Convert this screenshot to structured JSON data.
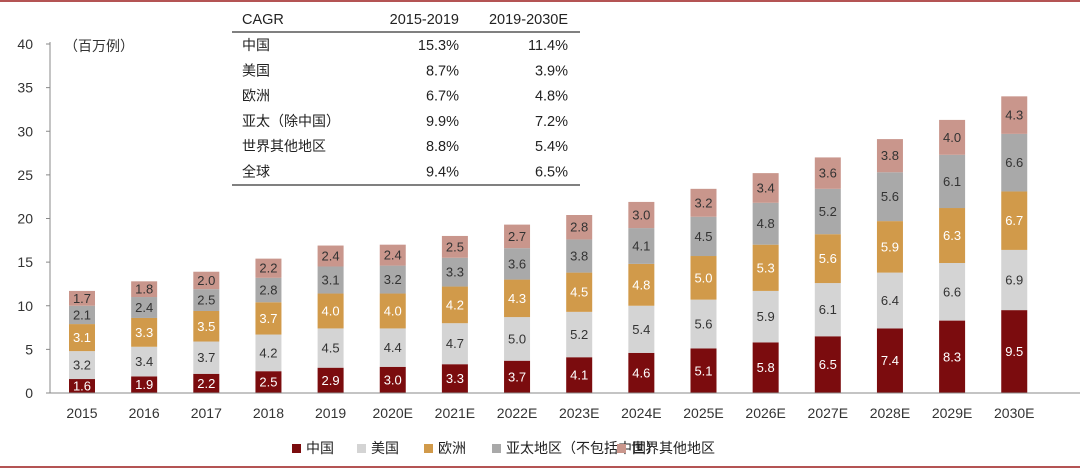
{
  "unit_note": "（百万例）",
  "chart_data": {
    "type": "bar",
    "stacked": true,
    "categories": [
      "2015",
      "2016",
      "2017",
      "2018",
      "2019",
      "2020E",
      "2021E",
      "2022E",
      "2023E",
      "2024E",
      "2025E",
      "2026E",
      "2027E",
      "2028E",
      "2029E",
      "2030E"
    ],
    "ylim": [
      0,
      40
    ],
    "yticks": [
      0,
      5,
      10,
      15,
      20,
      25,
      30,
      35,
      40
    ],
    "series": [
      {
        "name": "中国",
        "color": "#7b0c0e",
        "label_color": "#ffffff",
        "values": [
          1.6,
          1.9,
          2.2,
          2.5,
          2.9,
          3.0,
          3.3,
          3.7,
          4.1,
          4.6,
          5.1,
          5.8,
          6.5,
          7.4,
          8.3,
          9.5
        ]
      },
      {
        "name": "美国",
        "color": "#d4d4d4",
        "label_color": "#333333",
        "values": [
          3.2,
          3.4,
          3.7,
          4.2,
          4.5,
          4.4,
          4.7,
          5.0,
          5.2,
          5.4,
          5.6,
          5.9,
          6.1,
          6.4,
          6.6,
          6.9
        ]
      },
      {
        "name": "欧洲",
        "color": "#d19a4a",
        "label_color": "#ffffff",
        "values": [
          3.1,
          3.3,
          3.5,
          3.7,
          4.0,
          4.0,
          4.2,
          4.3,
          4.5,
          4.8,
          5.0,
          5.3,
          5.6,
          5.9,
          6.3,
          6.7
        ]
      },
      {
        "name": "亚太地区（不包括中国）",
        "color": "#a9a9a9",
        "label_color": "#333333",
        "values": [
          2.1,
          2.4,
          2.5,
          2.8,
          3.1,
          3.2,
          3.3,
          3.6,
          3.8,
          4.1,
          4.5,
          4.8,
          5.2,
          5.6,
          6.1,
          6.6
        ]
      },
      {
        "name": "世界其他地区",
        "color": "#c9968c",
        "label_color": "#333333",
        "values": [
          1.7,
          1.8,
          2.0,
          2.2,
          2.4,
          2.4,
          2.5,
          2.7,
          2.8,
          3.0,
          3.2,
          3.4,
          3.6,
          3.8,
          4.0,
          4.3
        ]
      }
    ]
  },
  "cagr_table": {
    "headers": [
      "CAGR",
      "2015-2019",
      "2019-2030E"
    ],
    "rows": [
      {
        "region": "中国",
        "c1": "15.3%",
        "c2": "11.4%"
      },
      {
        "region": "美国",
        "c1": "8.7%",
        "c2": "3.9%"
      },
      {
        "region": "欧洲",
        "c1": "6.7%",
        "c2": "4.8%"
      },
      {
        "region": "亚太（除中国）",
        "c1": "9.9%",
        "c2": "7.2%"
      },
      {
        "region": "世界其他地区",
        "c1": "8.8%",
        "c2": "5.4%"
      },
      {
        "region": "全球",
        "c1": "9.4%",
        "c2": "6.5%"
      }
    ]
  },
  "colors": {
    "frame": "#9b1c1c",
    "axis": "#888888"
  }
}
